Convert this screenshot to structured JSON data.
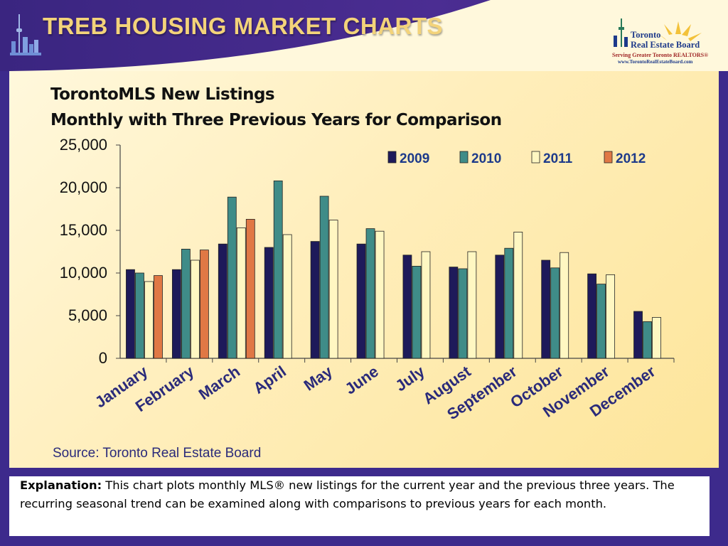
{
  "header": {
    "title": "TREB HOUSING MARKET CHARTS",
    "logo": {
      "name_line1": "Toronto",
      "name_line2": "Real Estate Board",
      "tagline": "Serving Greater Toronto REALTORS®",
      "url": "www.TorontoRealEstateBoard.com"
    }
  },
  "colors": {
    "2009": "#1e1a5a",
    "2010": "#3f8c88",
    "2011": "#fff7c2",
    "2012": "#e07845"
  },
  "chart_data": {
    "type": "bar",
    "title_line1": "TorontoMLS New Listings",
    "title_line2": "Monthly with Three Previous Years for Comparison",
    "categories": [
      "January",
      "February",
      "March",
      "April",
      "May",
      "June",
      "July",
      "August",
      "September",
      "October",
      "November",
      "December"
    ],
    "series": [
      {
        "name": "2009",
        "values": [
          10400,
          10400,
          13400,
          13000,
          13700,
          13400,
          12100,
          10700,
          12100,
          11500,
          9900,
          5500
        ]
      },
      {
        "name": "2010",
        "values": [
          10000,
          12800,
          18900,
          20800,
          19000,
          15200,
          10800,
          10500,
          12900,
          10600,
          8700,
          4300
        ]
      },
      {
        "name": "2011",
        "values": [
          9000,
          11500,
          15300,
          14500,
          16200,
          14900,
          12500,
          12500,
          14800,
          12400,
          9800,
          4800
        ]
      },
      {
        "name": "2012",
        "values": [
          9700,
          12700,
          16300,
          null,
          null,
          null,
          null,
          null,
          null,
          null,
          null,
          null
        ]
      }
    ],
    "yticks": [
      "0",
      "5,000",
      "10,000",
      "15,000",
      "20,000",
      "25,000"
    ],
    "ylim": [
      0,
      25000
    ],
    "legend_position": "top-right",
    "source": "Source: Toronto Real Estate Board"
  },
  "explanation": {
    "label": "Explanation:",
    "text": " This chart plots monthly MLS® new listings for the current year and the previous three years. The recurring seasonal trend can be examined along with comparisons to previous years for each month."
  }
}
